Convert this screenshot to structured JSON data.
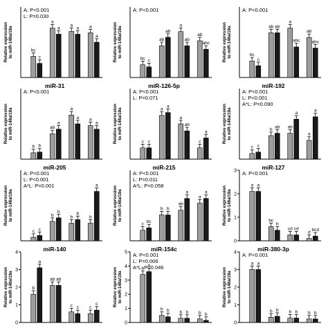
{
  "chart_data": [
    {
      "type": "bar",
      "title": "",
      "ylabel": "Relative expression to miR-148a/19a",
      "ylim": [
        0,
        1.5
      ],
      "yticks": [],
      "stats": [
        "A: P<0.001",
        "L: P=0.030"
      ],
      "series": [
        {
          "name": "",
          "color": "#9e9e9e",
          "values": [
            0.45,
            1.05,
            0.98,
            0.95
          ]
        },
        {
          "name": "",
          "color": "#1a1a1a",
          "values": [
            0.3,
            0.92,
            0.92,
            0.75
          ]
        }
      ],
      "letters": [
        [
          "bc",
          "a",
          "a",
          "a"
        ],
        [
          "c",
          "a",
          "a",
          "a"
        ]
      ]
    },
    {
      "type": "bar",
      "title": "",
      "ylabel": "Relative expression to miR-148a/19a",
      "ylim": [
        0,
        1.0
      ],
      "yticks": [],
      "stats": [
        "A: P<0.001"
      ],
      "series": [
        {
          "name": "",
          "color": "#9e9e9e",
          "values": [
            0.18,
            0.45,
            0.65,
            0.52
          ]
        },
        {
          "name": "",
          "color": "#1a1a1a",
          "values": [
            0.15,
            0.57,
            0.45,
            0.4
          ]
        }
      ],
      "letters": [
        [
          "bc",
          "ab",
          "a",
          "ab"
        ],
        [
          "c",
          "ab",
          "ab",
          "abc"
        ]
      ]
    },
    {
      "type": "bar",
      "title": "",
      "ylabel": "Relative expression to miR-148a/19a",
      "ylim": [
        0,
        3
      ],
      "yticks": [],
      "stats": [
        "A: P<0.001"
      ],
      "series": [
        {
          "name": "",
          "color": "#9e9e9e",
          "values": [
            0.7,
            1.9,
            2.1,
            1.7
          ]
        },
        {
          "name": "",
          "color": "#1a1a1a",
          "values": [
            0.5,
            1.9,
            1.3,
            1.25
          ]
        }
      ],
      "letters": [
        [
          "bc",
          "ab",
          "a",
          "ab"
        ],
        [
          "c",
          "ab",
          "abc",
          "abc"
        ]
      ]
    },
    {
      "type": "bar",
      "title": "miR-31",
      "ylabel": "Relative expression to miR-148a/19a",
      "ylim": [
        0,
        2.0
      ],
      "yticks": [],
      "stats": [
        "A: P<0.001"
      ],
      "series": [
        {
          "name": "",
          "color": "#9e9e9e",
          "values": [
            0.18,
            0.72,
            1.25,
            0.95
          ]
        },
        {
          "name": "",
          "color": "#1a1a1a",
          "values": [
            0.2,
            0.85,
            1.0,
            0.85
          ]
        }
      ],
      "letters": [
        [
          "b",
          "ab",
          "a",
          "a"
        ],
        [
          "b",
          "a",
          "a",
          "a"
        ]
      ]
    },
    {
      "type": "bar",
      "title": "miR-126-5p",
      "ylabel": "Relative expression to miR-148a/19a",
      "ylim": [
        0,
        5
      ],
      "yticks": [],
      "stats": [
        "A: P<0.001",
        "L: P=0.071"
      ],
      "series": [
        {
          "name": "",
          "color": "#9e9e9e",
          "values": [
            0.8,
            3.1,
            2.5,
            0.8
          ]
        },
        {
          "name": "",
          "color": "#1a1a1a",
          "values": [
            0.8,
            3.3,
            2.0,
            1.5
          ]
        }
      ],
      "letters": [
        [
          "c",
          "a",
          "a",
          "c"
        ],
        [
          "c",
          "a",
          "ab",
          "a"
        ]
      ]
    },
    {
      "type": "bar",
      "title": "miR-192",
      "ylabel": "Relative expression to miR-148a/19a",
      "ylim": [
        0,
        1.5
      ],
      "yticks": [],
      "stats": [
        "A: P<0.001",
        "L: P<0.001",
        "A*L: P=0.090"
      ],
      "series": [
        {
          "name": "",
          "color": "#9e9e9e",
          "values": [
            0.12,
            0.5,
            0.55,
            0.4
          ]
        },
        {
          "name": "",
          "color": "#1a1a1a",
          "values": [
            0.15,
            0.55,
            0.85,
            0.9
          ]
        }
      ],
      "letters": [
        [
          "c",
          "b",
          "ab",
          "a"
        ],
        [
          "c",
          "ab",
          "a",
          "a"
        ]
      ]
    },
    {
      "type": "bar",
      "title": "miR-205",
      "ylabel": "Relative expression to miR-148a/19a",
      "ylim": [
        0,
        4
      ],
      "yticks": [],
      "stats": [
        "A: P<0.001",
        "L: P<0.001",
        "A*L: P=0.001"
      ],
      "series": [
        {
          "name": "",
          "color": "#9e9e9e",
          "values": [
            0.2,
            1.1,
            1.0,
            1.0
          ]
        },
        {
          "name": "",
          "color": "#1a1a1a",
          "values": [
            0.3,
            1.3,
            1.2,
            2.8
          ]
        }
      ],
      "letters": [
        [
          "c",
          "b",
          "b",
          "b"
        ],
        [
          "c",
          "b",
          "b",
          "a"
        ]
      ]
    },
    {
      "type": "bar",
      "title": "miR-215",
      "ylabel": "Relative expression to miR-148a/19a",
      "ylim": [
        0,
        3
      ],
      "yticks": [],
      "stats": [
        "A: P<0.001",
        "L: P=0.011",
        "A*L: P=0.058"
      ],
      "series": [
        {
          "name": "",
          "color": "#9e9e9e",
          "values": [
            0.45,
            1.1,
            1.3,
            1.6
          ]
        },
        {
          "name": "",
          "color": "#1a1a1a",
          "values": [
            0.55,
            1.1,
            1.8,
            1.8
          ]
        }
      ],
      "letters": [
        [
          "c",
          "b",
          "ab",
          "a"
        ],
        [
          "bc",
          "b",
          "a",
          "a"
        ]
      ]
    },
    {
      "type": "bar",
      "title": "miR-127",
      "ylabel": "Relative expression to miR-148a/19a",
      "ylim": [
        0,
        3
      ],
      "yticks": [
        "0",
        "1",
        "2",
        "3"
      ],
      "stats": [
        "A: P<0.001"
      ],
      "series": [
        {
          "name": "",
          "color": "#9e9e9e",
          "values": [
            2.1,
            0.6,
            0.25,
            0.1
          ]
        },
        {
          "name": "",
          "color": "#1a1a1a",
          "values": [
            2.1,
            0.45,
            0.25,
            0.2
          ]
        }
      ],
      "letters": [
        [
          "a",
          "bc",
          "cd",
          "d"
        ],
        [
          "a",
          "b",
          "cd",
          "bcd"
        ]
      ]
    },
    {
      "type": "bar",
      "title": "miR-140",
      "ylabel": "Relative expression to miR-148a/19a",
      "ylim": [
        0,
        4
      ],
      "yticks": [
        "0",
        "1",
        "2",
        "3",
        "4"
      ],
      "stats": [],
      "series": [
        {
          "name": "",
          "color": "#9e9e9e",
          "values": [
            1.6,
            2.1,
            0.6,
            0.5
          ]
        },
        {
          "name": "",
          "color": "#1a1a1a",
          "values": [
            3.1,
            2.1,
            0.5,
            0.7
          ]
        }
      ],
      "letters": [
        [
          "b",
          "ab",
          "c",
          "c"
        ],
        [
          "a",
          "ab",
          "c",
          "c"
        ]
      ]
    },
    {
      "type": "bar",
      "title": "miR-154c",
      "ylabel": "Relative expression to miR-148a/19a",
      "ylim": [
        0,
        5
      ],
      "yticks": [
        "0",
        "1",
        "2",
        "3",
        "4",
        "5"
      ],
      "stats": [
        "A: P<0.001",
        "L: P=0.006",
        "A*L: P=0.046"
      ],
      "series": [
        {
          "name": "",
          "color": "#9e9e9e",
          "values": [
            3.4,
            0.5,
            0.3,
            0.25
          ]
        },
        {
          "name": "",
          "color": "#1a1a1a",
          "values": [
            3.6,
            0.4,
            0.3,
            0.15
          ]
        }
      ],
      "letters": [
        [
          "a",
          "b",
          "b",
          "b"
        ],
        [
          "a",
          "b",
          "b",
          "b"
        ]
      ]
    },
    {
      "type": "bar",
      "title": "miR-380-3p",
      "ylabel": "Relative expression to miR-148a/19a",
      "ylim": [
        0,
        4
      ],
      "yticks": [
        "0",
        "1",
        "2",
        "3",
        "4"
      ],
      "stats": [
        "A: P<0.001"
      ],
      "series": [
        {
          "name": "",
          "color": "#9e9e9e",
          "values": [
            3.0,
            0.3,
            0.25,
            0.2
          ]
        },
        {
          "name": "",
          "color": "#1a1a1a",
          "values": [
            3.0,
            0.35,
            0.25,
            0.2
          ]
        }
      ],
      "letters": [
        [
          "a",
          "b",
          "b",
          "b"
        ],
        [
          "a",
          "b",
          "b",
          "b"
        ]
      ]
    }
  ]
}
